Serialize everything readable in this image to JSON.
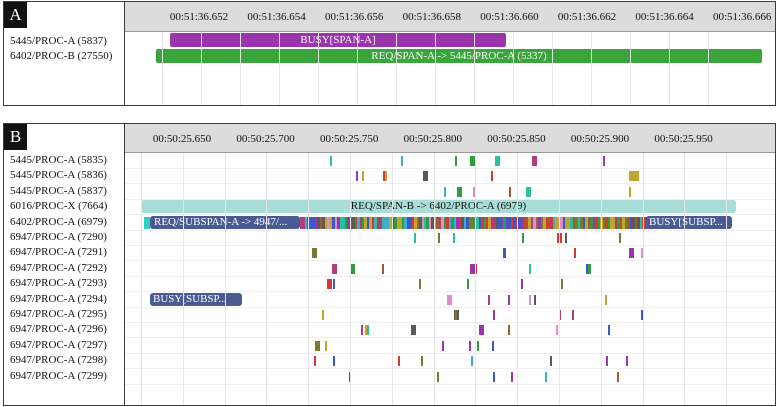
{
  "panelA": {
    "label": "A",
    "ticks": [
      "00:51:36.652",
      "00:51:36.654",
      "00:51:36.656",
      "00:51:36.658",
      "00:51:36.660",
      "00:51:36.662",
      "00:51:36.664",
      "00:51:36.666"
    ],
    "rows": [
      "5445/PROC-A (5837)",
      "6402/PROC-B (27550)"
    ],
    "spans": [
      {
        "label": "BUSY[SPAN-A]",
        "color": "#9a35ad"
      },
      {
        "label": "REQ/SPAN-A -> 5445/PROC-A (5337)",
        "color": "#3aa53a"
      }
    ]
  },
  "panelB": {
    "label": "B",
    "ticks": [
      "00:50:25.650",
      "00:50:25.700",
      "00:50:25.750",
      "00:50:25.800",
      "00:50:25.850",
      "00:50:25.900",
      "00:50:25.950"
    ],
    "rows": [
      "5445/PROC-A (5835)",
      "5445/PROC-A (5836)",
      "5445/PROC-A (5837)",
      "6016/PROC-X (7664)",
      "6402/PROC-A (6979)",
      "6947/PROC-A (7290)",
      "6947/PROC-A (7291)",
      "6947/PROC-A (7292)",
      "6947/PROC-A (7293)",
      "6947/PROC-A (7294)",
      "6947/PROC-A (7295)",
      "6947/PROC-A (7296)",
      "6947/PROC-A (7297)",
      "6947/PROC-A (7298)",
      "6947/PROC-A (7299)"
    ],
    "spans": [
      {
        "label": "REQ/SPAN-B -> 6402/PROC-A (6979)",
        "color": "#a8ddd8"
      },
      {
        "label": "REQ/SUBSPAN-A -> 4947/...",
        "color": "#4a5a92"
      },
      {
        "label": "BUSY[SUBSP...",
        "color": "#4a5a92"
      },
      {
        "label": "BUSY[SUBSP...",
        "color": "#4a5a92"
      }
    ]
  }
}
